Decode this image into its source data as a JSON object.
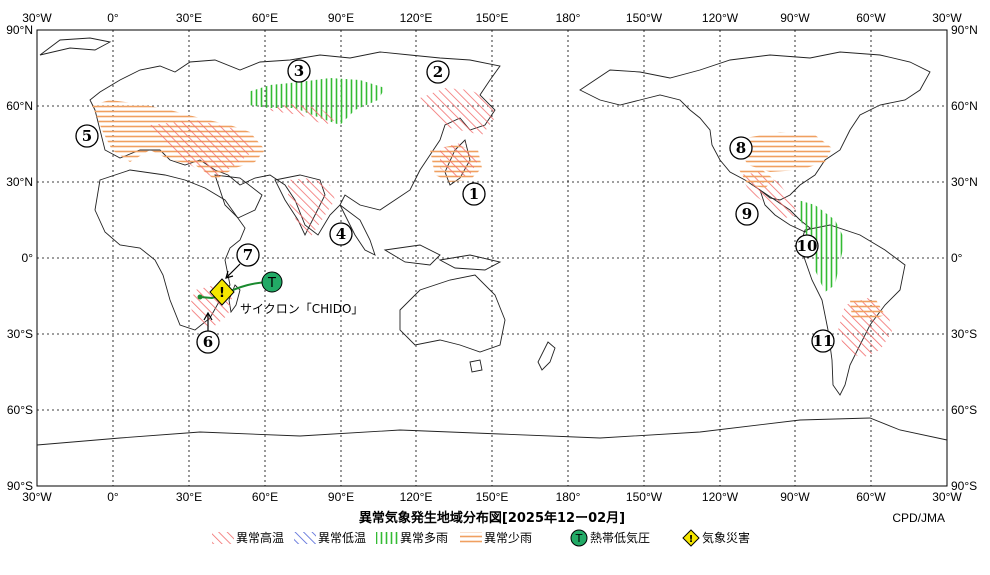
{
  "title": "異常気象発生地域分布図[2025年12ー02月]",
  "credit": "CPD/JMA",
  "axes": {
    "lon_labels": [
      "30°W",
      "0°",
      "30°E",
      "60°E",
      "90°E",
      "120°E",
      "150°E",
      "180°",
      "150°W",
      "120°W",
      "90°W",
      "60°W",
      "30°W"
    ],
    "lat_labels": [
      "90°N",
      "60°N",
      "30°N",
      "0°",
      "30°S",
      "60°S",
      "90°S"
    ]
  },
  "legend": [
    {
      "label": "異常高温",
      "pattern": "hot",
      "color": "#f26d6d"
    },
    {
      "label": "異常低温",
      "pattern": "cold",
      "color": "#4a5fd6"
    },
    {
      "label": "異常多雨",
      "pattern": "wet",
      "color": "#33bb33"
    },
    {
      "label": "異常少雨",
      "pattern": "dry",
      "color": "#f0a060"
    },
    {
      "label": "熱帯低気圧",
      "pattern": "cyclone",
      "color": "#22aa66",
      "symbol": "T"
    },
    {
      "label": "気象災害",
      "pattern": "disaster",
      "color": "#f5e600",
      "symbol": "!"
    }
  ],
  "regions": [
    {
      "id": "1",
      "label": "①",
      "type": "hot"
    },
    {
      "id": "2",
      "label": "②",
      "type": "hot"
    },
    {
      "id": "3",
      "label": "③",
      "type": "wet"
    },
    {
      "id": "4",
      "label": "④",
      "type": "hot"
    },
    {
      "id": "5",
      "label": "⑤",
      "type": "dry"
    },
    {
      "id": "6",
      "label": "⑥",
      "type": "hot"
    },
    {
      "id": "7",
      "label": "⑦",
      "type": "disaster"
    },
    {
      "id": "8",
      "label": "⑧",
      "type": "dry"
    },
    {
      "id": "9",
      "label": "⑨",
      "type": "hot"
    },
    {
      "id": "10",
      "label": "⑩",
      "type": "wet"
    },
    {
      "id": "11",
      "label": "⑪",
      "type": "hot"
    }
  ],
  "cyclone_annotation": "サイクロン「CHIDO」",
  "cyclone_symbol": "T",
  "disaster_symbol": "!"
}
